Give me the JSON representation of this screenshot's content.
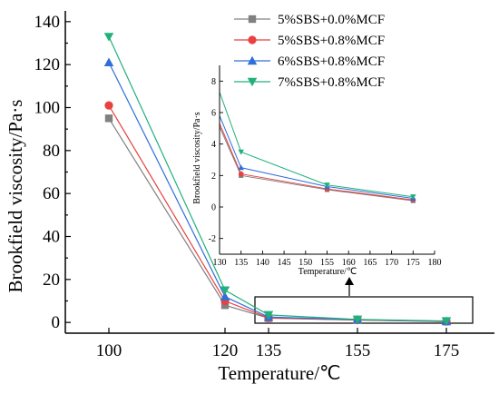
{
  "chart_data": {
    "type": "line",
    "xlabel": "Temperature/℃",
    "ylabel": "Brookfield viscosity/Pa·s",
    "x": [
      100,
      120,
      135,
      155,
      175
    ],
    "x_tick_labels": [
      "100",
      "120",
      "135",
      "155",
      "175"
    ],
    "ylim": [
      -5,
      145
    ],
    "y_ticks": [
      0,
      20,
      40,
      60,
      80,
      100,
      120,
      140
    ],
    "y_tick_labels": [
      "0",
      "20",
      "40",
      "60",
      "80",
      "100",
      "120",
      "140"
    ],
    "legend_position": "top-right",
    "series": [
      {
        "name": "5%SBS+0.0%MCF",
        "color": "#808080",
        "marker": "square",
        "values": [
          95,
          8.0,
          2.0,
          1.1,
          0.4
        ]
      },
      {
        "name": "5%SBS+0.8%MCF",
        "color": "#e8413f",
        "marker": "circle",
        "values": [
          101,
          10.0,
          2.1,
          1.15,
          0.45
        ]
      },
      {
        "name": "6%SBS+0.8%MCF",
        "color": "#2f6fd8",
        "marker": "triangle-up",
        "values": [
          121,
          12.0,
          2.5,
          1.3,
          0.55
        ]
      },
      {
        "name": "7%SBS+0.8%MCF",
        "color": "#22b07c",
        "marker": "triangle-down",
        "values": [
          133,
          15.0,
          3.5,
          1.4,
          0.65
        ]
      }
    ],
    "inset": {
      "xlabel": "Temperature/℃",
      "ylabel": "Brookfield viscosity/Pa·s",
      "xlim": [
        130,
        180
      ],
      "ylim": [
        -3,
        9
      ],
      "x_ticks": [
        130,
        135,
        140,
        145,
        150,
        155,
        160,
        165,
        170,
        175,
        180
      ],
      "x_tick_labels": [
        "130",
        "135",
        "140",
        "145",
        "150",
        "155",
        "160",
        "165",
        "170",
        "175",
        "180"
      ],
      "y_ticks": [
        -2,
        0,
        2,
        4,
        6,
        8
      ],
      "y_tick_labels": [
        "-2",
        "0",
        "2",
        "4",
        "6",
        "8"
      ],
      "line_start": {
        "x": 130,
        "values": [
          5.1,
          5.3,
          5.8,
          7.3
        ]
      },
      "x": [
        135,
        155,
        175
      ]
    }
  }
}
